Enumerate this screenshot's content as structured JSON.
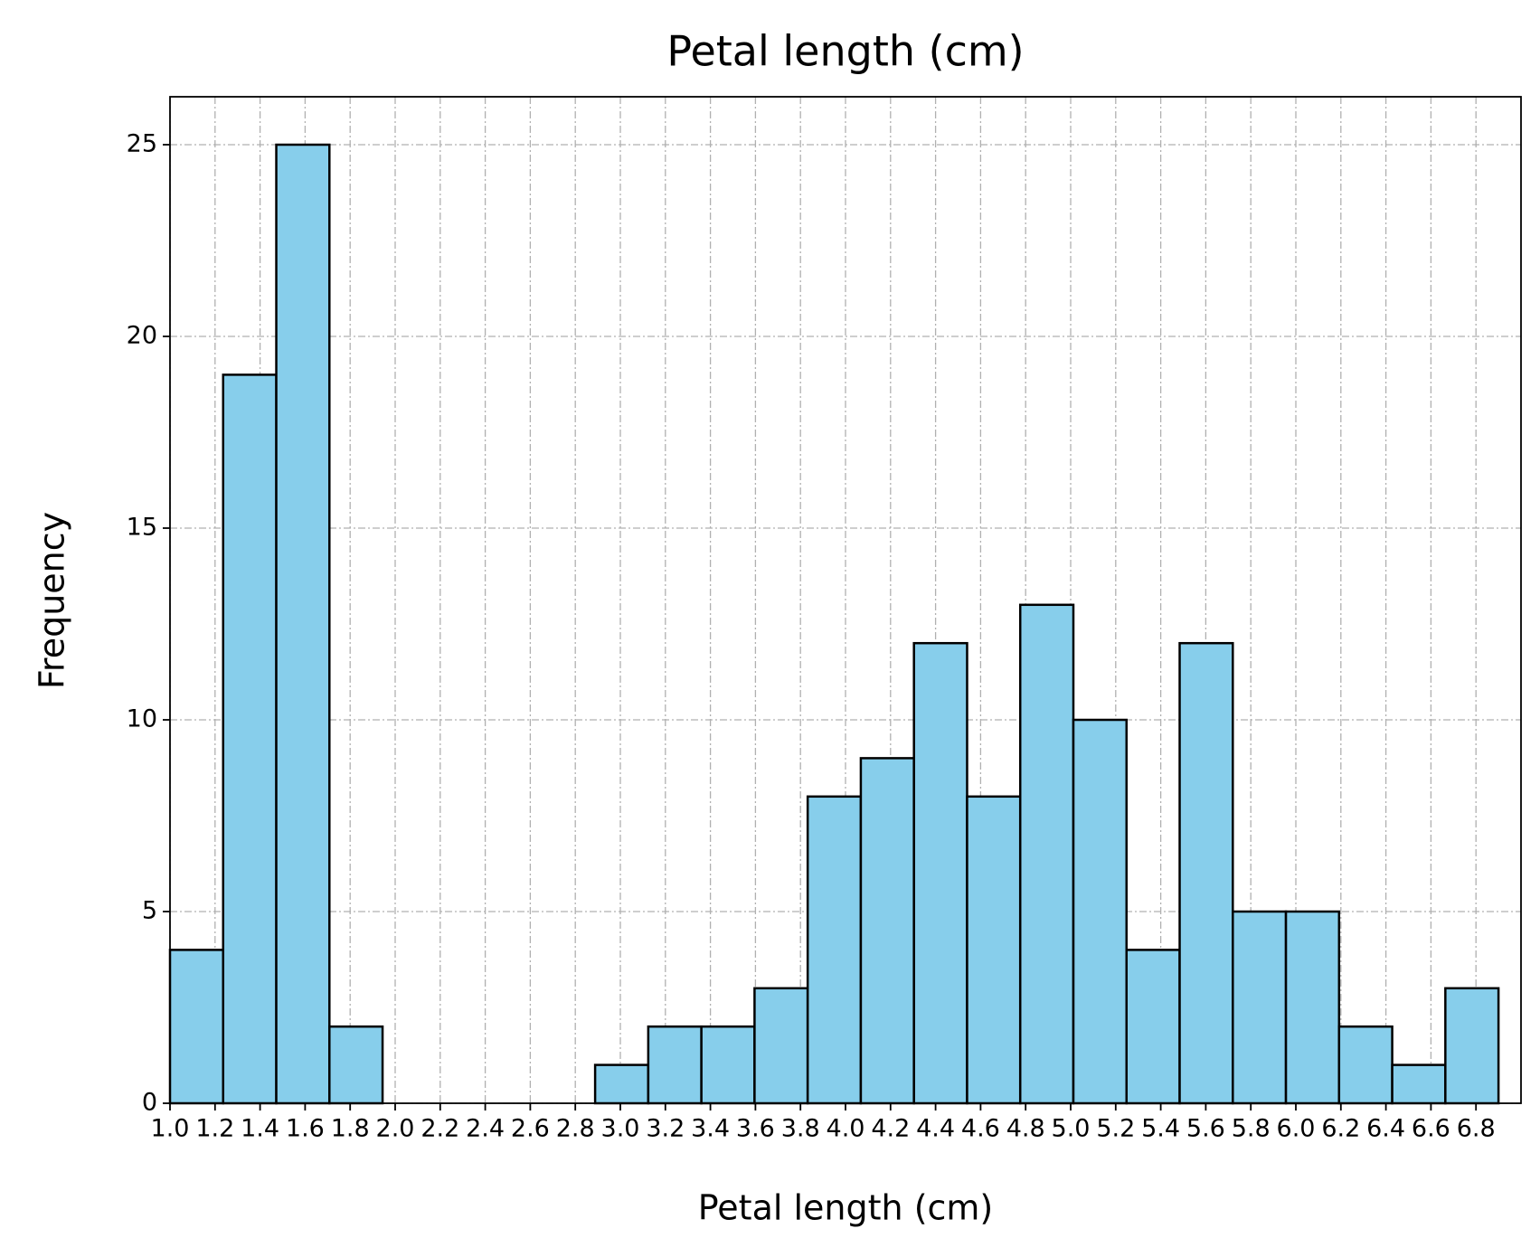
{
  "chart_data": {
    "type": "histogram",
    "title": "Petal length (cm)",
    "x_label": "Petal length (cm)",
    "y_label": "Frequency",
    "bins": [
      1.0,
      1.236,
      1.472,
      1.708,
      1.944,
      2.18,
      2.416,
      2.652,
      2.888,
      3.124,
      3.36,
      3.596,
      3.832,
      4.068,
      4.304,
      4.54,
      4.776,
      5.012,
      5.248,
      5.484,
      5.72,
      5.956,
      6.192,
      6.428,
      6.664,
      6.9
    ],
    "values": [
      4,
      19,
      25,
      2,
      0,
      0,
      0,
      0,
      1,
      2,
      2,
      3,
      8,
      9,
      12,
      8,
      13,
      10,
      4,
      12,
      5,
      5,
      2,
      1,
      3
    ],
    "color": "#87ceeb",
    "edgecolor": "#000000",
    "xlim": [
      1.0,
      7.0
    ],
    "xticks": [
      {
        "value": 1.0,
        "label": "1.0"
      },
      1.2,
      1.4,
      1.6,
      1.8,
      {
        "value": 2.0,
        "label": "2.0"
      },
      2.2,
      2.4,
      2.6,
      2.8,
      {
        "value": 3.0,
        "label": "3.0"
      },
      3.2,
      3.4,
      3.6,
      3.8,
      {
        "value": 4.0,
        "label": "4.0"
      },
      4.2,
      4.4,
      4.6,
      4.8,
      {
        "value": 5.0,
        "label": "5.0"
      },
      5.2,
      5.4,
      5.6,
      5.8,
      {
        "value": 6.0,
        "label": "6.0"
      },
      6.2,
      6.4,
      6.6,
      6.8
    ],
    "ylim": [
      0,
      26.25
    ],
    "yticks": [
      0,
      5,
      10,
      15,
      20,
      25
    ],
    "grid": true
  }
}
